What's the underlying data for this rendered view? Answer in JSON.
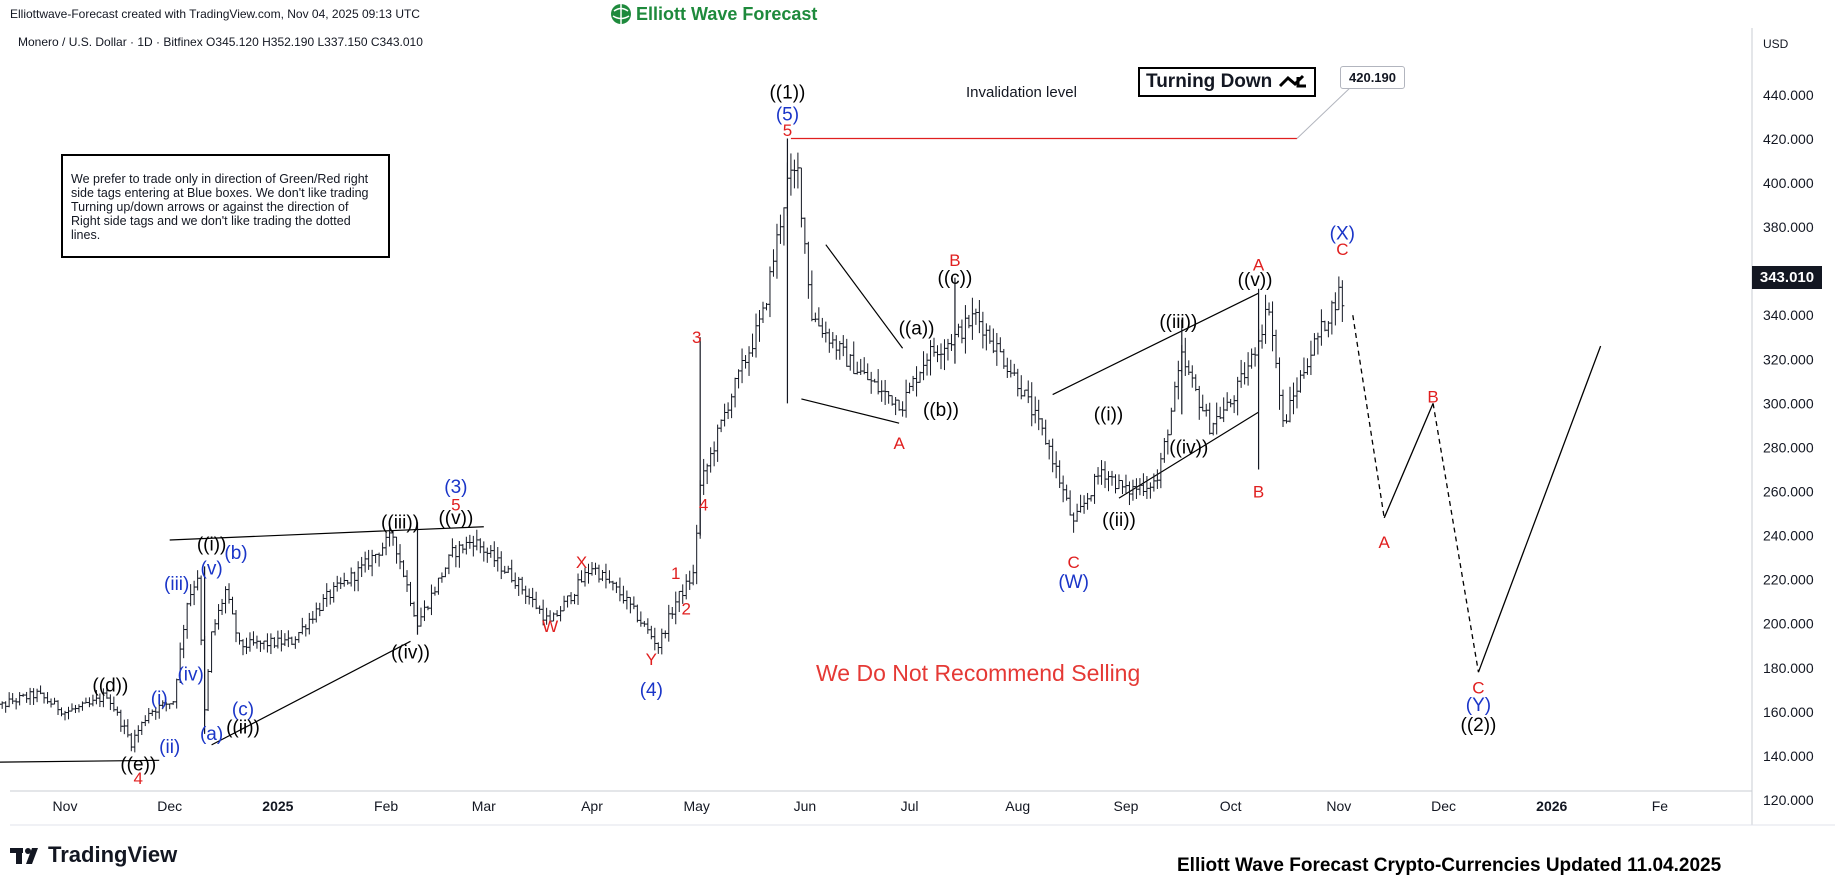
{
  "header": {
    "credit": "Elliottwave-Forecast created with TradingView.com, Nov 04, 2025 09:13 UTC",
    "brand": "Elliott Wave Forecast",
    "symbol_line": "Monero / U.S. Dollar · 1D · Bitfinex  O345.120  H352.190  L337.150  C343.010"
  },
  "note_box": "We prefer to trade only in direction of Green/Red right side tags entering at Blue boxes. We don't like trading Turning up/down arrows or against the direction of Right side tags and we don't like trading the dotted lines.",
  "turning_box": {
    "label": "Turning Down",
    "icon": "arrow-down-right-icon"
  },
  "invalidation": {
    "label": "Invalidation level",
    "price": 420.19,
    "price_text": "420.190"
  },
  "last_price_tag": "343.010",
  "warning": "We Do Not Recommend Selling",
  "footer": "Elliott Wave Forecast Crypto-Currencies Updated 11.04.2025",
  "tv_logo": "TradingView",
  "colors": {
    "wave_black": "#000000",
    "wave_blue": "#1a35c8",
    "wave_red": "#e01f1f",
    "brand_green": "#1e8a3c",
    "candles": "#131722",
    "price_tag_bg": "#131722"
  },
  "chart_data": {
    "type": "ohlc-bars",
    "symbol": "Monero / U.S. Dollar",
    "timeframe": "1D",
    "exchange": "Bitfinex",
    "last_bar": {
      "open": 345.12,
      "high": 352.19,
      "low": 337.15,
      "close": 343.01
    },
    "currency": "USD",
    "ylim": [
      110,
      450
    ],
    "y_ticks": [
      120,
      140,
      160,
      180,
      200,
      220,
      240,
      260,
      280,
      300,
      320,
      340,
      360,
      380,
      400,
      420,
      440
    ],
    "y_tick_labels": [
      "120.000",
      "140.000",
      "160.000",
      "180.000",
      "200.000",
      "220.000",
      "240.000",
      "260.000",
      "280.000",
      "300.000",
      "320.000",
      "340.000",
      "360.000",
      "380.000",
      "400.000",
      "420.000",
      "440.000"
    ],
    "x_ticks": [
      {
        "label": "Nov",
        "date": "2024-11-01",
        "bold": false
      },
      {
        "label": "Dec",
        "date": "2024-12-01",
        "bold": false
      },
      {
        "label": "2025",
        "date": "2025-01-01",
        "bold": true
      },
      {
        "label": "Feb",
        "date": "2025-02-01",
        "bold": false
      },
      {
        "label": "Mar",
        "date": "2025-03-01",
        "bold": false
      },
      {
        "label": "Apr",
        "date": "2025-04-01",
        "bold": false
      },
      {
        "label": "May",
        "date": "2025-05-01",
        "bold": false
      },
      {
        "label": "Jun",
        "date": "2025-06-01",
        "bold": false
      },
      {
        "label": "Jul",
        "date": "2025-07-01",
        "bold": false
      },
      {
        "label": "Aug",
        "date": "2025-08-01",
        "bold": false
      },
      {
        "label": "Sep",
        "date": "2025-09-01",
        "bold": false
      },
      {
        "label": "Oct",
        "date": "2025-10-01",
        "bold": false
      },
      {
        "label": "Nov",
        "date": "2025-11-01",
        "bold": false
      },
      {
        "label": "Dec",
        "date": "2025-12-01",
        "bold": false
      },
      {
        "label": "2026",
        "date": "2026-01-01",
        "bold": true
      },
      {
        "label": "Fe",
        "date": "2026-02-01",
        "bold": false
      }
    ],
    "price_path": [
      [
        "2024-10-10",
        160
      ],
      [
        "2024-10-17",
        165
      ],
      [
        "2024-10-24",
        168
      ],
      [
        "2024-11-01",
        160
      ],
      [
        "2024-11-08",
        163
      ],
      [
        "2024-11-13",
        168
      ],
      [
        "2024-11-20",
        146
      ],
      [
        "2024-11-25",
        160
      ],
      [
        "2024-12-02",
        165
      ],
      [
        "2024-12-06",
        210
      ],
      [
        "2024-12-09",
        222
      ],
      [
        "2024-12-11",
        160
      ],
      [
        "2024-12-13",
        195
      ],
      [
        "2024-12-17",
        215
      ],
      [
        "2024-12-21",
        190
      ],
      [
        "2025-01-05",
        192
      ],
      [
        "2025-01-15",
        212
      ],
      [
        "2025-01-25",
        225
      ],
      [
        "2025-02-03",
        240
      ],
      [
        "2025-02-10",
        200
      ],
      [
        "2025-02-20",
        232
      ],
      [
        "2025-02-26",
        238
      ],
      [
        "2025-03-10",
        220
      ],
      [
        "2025-03-20",
        200
      ],
      [
        "2025-04-01",
        226
      ],
      [
        "2025-04-10",
        212
      ],
      [
        "2025-04-20",
        190
      ],
      [
        "2025-04-25",
        210
      ],
      [
        "2025-04-30",
        222
      ],
      [
        "2025-05-02",
        262
      ],
      [
        "2025-05-10",
        300
      ],
      [
        "2025-05-20",
        340
      ],
      [
        "2025-05-27",
        400
      ],
      [
        "2025-05-30",
        405
      ],
      [
        "2025-06-03",
        340
      ],
      [
        "2025-06-13",
        320
      ],
      [
        "2025-06-23",
        305
      ],
      [
        "2025-06-29",
        300
      ],
      [
        "2025-07-06",
        322
      ],
      [
        "2025-07-14",
        330
      ],
      [
        "2025-07-20",
        340
      ],
      [
        "2025-08-01",
        310
      ],
      [
        "2025-08-10",
        280
      ],
      [
        "2025-08-17",
        245
      ],
      [
        "2025-08-25",
        270
      ],
      [
        "2025-09-01",
        260
      ],
      [
        "2025-09-10",
        265
      ],
      [
        "2025-09-17",
        320
      ],
      [
        "2025-09-25",
        290
      ],
      [
        "2025-10-01",
        300
      ],
      [
        "2025-10-07",
        320
      ],
      [
        "2025-10-12",
        345
      ],
      [
        "2025-10-16",
        290
      ],
      [
        "2025-10-23",
        320
      ],
      [
        "2025-11-01",
        350
      ],
      [
        "2025-11-03",
        343.01
      ]
    ],
    "projection": {
      "solid": [
        [
          "2025-11-05",
          340
        ],
        [
          "2025-11-14",
          248
        ],
        [
          "2025-11-28",
          300
        ]
      ],
      "dashed": [
        [
          "2025-11-05",
          340
        ],
        [
          "2025-11-14",
          248
        ]
      ],
      "dashed2": [
        [
          "2025-11-28",
          300
        ],
        [
          "2025-12-11",
          178
        ]
      ],
      "final_leg": [
        [
          "2025-12-11",
          178
        ],
        [
          "2026-01-15",
          326
        ]
      ]
    },
    "trend_lines": [
      {
        "from": [
          "2024-10-03",
          152
        ],
        "to": [
          "2024-10-10",
          162
        ]
      },
      {
        "from": [
          "2024-10-03",
          137
        ],
        "to": [
          "2024-11-28",
          138
        ]
      },
      {
        "from": [
          "2024-12-01",
          238
        ],
        "to": [
          "2025-03-01",
          244
        ]
      },
      {
        "from": [
          "2024-12-13",
          145
        ],
        "to": [
          "2025-02-08",
          192
        ]
      },
      {
        "from": [
          "2025-05-31",
          302
        ],
        "to": [
          "2025-06-28",
          291
        ]
      },
      {
        "from": [
          "2025-06-07",
          372
        ],
        "to": [
          "2025-06-29",
          325
        ]
      },
      {
        "from": [
          "2025-08-11",
          304
        ],
        "to": [
          "2025-10-09",
          350
        ]
      },
      {
        "from": [
          "2025-08-30",
          257
        ],
        "to": [
          "2025-10-09",
          296
        ]
      }
    ],
    "invalidation_line": {
      "from": "2025-05-28",
      "to": "2025-10-20",
      "price": 420.19
    },
    "wave_labels": [
      {
        "text": "((d))",
        "date": "2024-11-14",
        "price": 172,
        "color": "black"
      },
      {
        "text": "((e))",
        "date": "2024-11-22",
        "price": 136,
        "color": "black"
      },
      {
        "text": "4",
        "date": "2024-11-22",
        "price": 130,
        "color": "red"
      },
      {
        "text": "(i)",
        "date": "2024-11-28",
        "price": 166,
        "color": "blue"
      },
      {
        "text": "(ii)",
        "date": "2024-12-01",
        "price": 144,
        "color": "blue"
      },
      {
        "text": "(iii)",
        "date": "2024-12-03",
        "price": 218,
        "color": "blue"
      },
      {
        "text": "(iv)",
        "date": "2024-12-07",
        "price": 177,
        "color": "blue"
      },
      {
        "text": "(v)",
        "date": "2024-12-13",
        "price": 225,
        "color": "blue"
      },
      {
        "text": "((i))",
        "date": "2024-12-13",
        "price": 236,
        "color": "black"
      },
      {
        "text": "(b)",
        "date": "2024-12-20",
        "price": 232,
        "color": "blue"
      },
      {
        "text": "(a)",
        "date": "2024-12-13",
        "price": 150,
        "color": "blue"
      },
      {
        "text": "(c)",
        "date": "2024-12-22",
        "price": 161,
        "color": "blue"
      },
      {
        "text": "((ii))",
        "date": "2024-12-22",
        "price": 153,
        "color": "black"
      },
      {
        "text": "((iii))",
        "date": "2025-02-05",
        "price": 246,
        "color": "black"
      },
      {
        "text": "((iv))",
        "date": "2025-02-08",
        "price": 187,
        "color": "black"
      },
      {
        "text": "((v))",
        "date": "2025-02-21",
        "price": 248,
        "color": "black"
      },
      {
        "text": "5",
        "date": "2025-02-21",
        "price": 254,
        "color": "red"
      },
      {
        "text": "(3)",
        "date": "2025-02-21",
        "price": 262,
        "color": "blue"
      },
      {
        "text": "W",
        "date": "2025-03-20",
        "price": 199,
        "color": "red"
      },
      {
        "text": "X",
        "date": "2025-03-29",
        "price": 228,
        "color": "red"
      },
      {
        "text": "Y",
        "date": "2025-04-18",
        "price": 184,
        "color": "red"
      },
      {
        "text": "(4)",
        "date": "2025-04-18",
        "price": 170,
        "color": "blue"
      },
      {
        "text": "1",
        "date": "2025-04-25",
        "price": 223,
        "color": "red"
      },
      {
        "text": "2",
        "date": "2025-04-28",
        "price": 207,
        "color": "red"
      },
      {
        "text": "3",
        "date": "2025-05-01",
        "price": 330,
        "color": "red"
      },
      {
        "text": "4",
        "date": "2025-05-03",
        "price": 254,
        "color": "red"
      },
      {
        "text": "5",
        "date": "2025-05-27",
        "price": 424,
        "color": "red"
      },
      {
        "text": "(5)",
        "date": "2025-05-27",
        "price": 431,
        "color": "blue"
      },
      {
        "text": "((1))",
        "date": "2025-05-27",
        "price": 441,
        "color": "black"
      },
      {
        "text": "A",
        "date": "2025-06-28",
        "price": 282,
        "color": "red"
      },
      {
        "text": "((a))",
        "date": "2025-07-03",
        "price": 334,
        "color": "black"
      },
      {
        "text": "((b))",
        "date": "2025-07-10",
        "price": 297,
        "color": "black"
      },
      {
        "text": "B",
        "date": "2025-07-14",
        "price": 365,
        "color": "red"
      },
      {
        "text": "((c))",
        "date": "2025-07-14",
        "price": 357,
        "color": "black"
      },
      {
        "text": "C",
        "date": "2025-08-17",
        "price": 228,
        "color": "red"
      },
      {
        "text": "(W)",
        "date": "2025-08-17",
        "price": 219,
        "color": "blue"
      },
      {
        "text": "((i))",
        "date": "2025-08-27",
        "price": 295,
        "color": "black"
      },
      {
        "text": "((ii))",
        "date": "2025-08-30",
        "price": 247,
        "color": "black"
      },
      {
        "text": "((iii))",
        "date": "2025-09-16",
        "price": 337,
        "color": "black"
      },
      {
        "text": "((iv))",
        "date": "2025-09-19",
        "price": 280,
        "color": "black"
      },
      {
        "text": "((v))",
        "date": "2025-10-08",
        "price": 356,
        "color": "black"
      },
      {
        "text": "A",
        "date": "2025-10-09",
        "price": 363,
        "color": "red"
      },
      {
        "text": "B",
        "date": "2025-10-09",
        "price": 260,
        "color": "red"
      },
      {
        "text": "C",
        "date": "2025-11-02",
        "price": 370,
        "color": "red"
      },
      {
        "text": "(X)",
        "date": "2025-11-02",
        "price": 377,
        "color": "blue"
      },
      {
        "text": "A",
        "date": "2025-11-14",
        "price": 237,
        "color": "red"
      },
      {
        "text": "B",
        "date": "2025-11-28",
        "price": 303,
        "color": "red"
      },
      {
        "text": "C",
        "date": "2025-12-11",
        "price": 171,
        "color": "red"
      },
      {
        "text": "(Y)",
        "date": "2025-12-11",
        "price": 163,
        "color": "blue"
      },
      {
        "text": "((2))",
        "date": "2025-12-11",
        "price": 154,
        "color": "black"
      }
    ]
  }
}
